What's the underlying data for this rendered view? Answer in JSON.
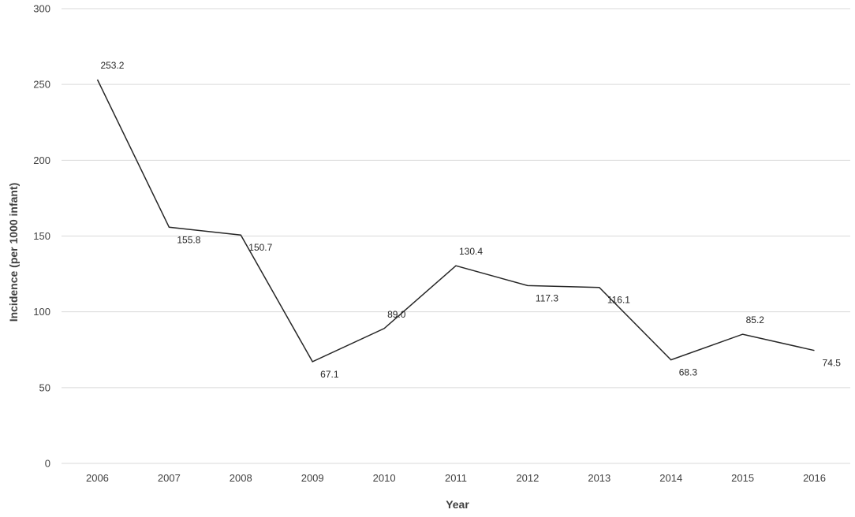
{
  "chart_data": {
    "type": "line",
    "title": "",
    "xlabel": "Year",
    "ylabel": "Incidence (per 1000 infant)",
    "ylim": [
      0,
      300
    ],
    "yticks": [
      0,
      50,
      100,
      150,
      200,
      250,
      300
    ],
    "grid": "horizontal",
    "legend": "none",
    "categories": [
      "2006",
      "2007",
      "2008",
      "2009",
      "2010",
      "2011",
      "2012",
      "2013",
      "2014",
      "2015",
      "2016"
    ],
    "series": [
      {
        "values": [
          253.2,
          155.8,
          150.7,
          67.1,
          89.0,
          130.4,
          117.3,
          116.1,
          68.3,
          85.2,
          74.5
        ],
        "labels": [
          "253.2",
          "155.8",
          "150.7",
          "67.1",
          "89.0",
          "130.4",
          "117.3",
          "116.1",
          "68.3",
          "85.2",
          "74.5"
        ],
        "color": "#262626"
      }
    ]
  }
}
